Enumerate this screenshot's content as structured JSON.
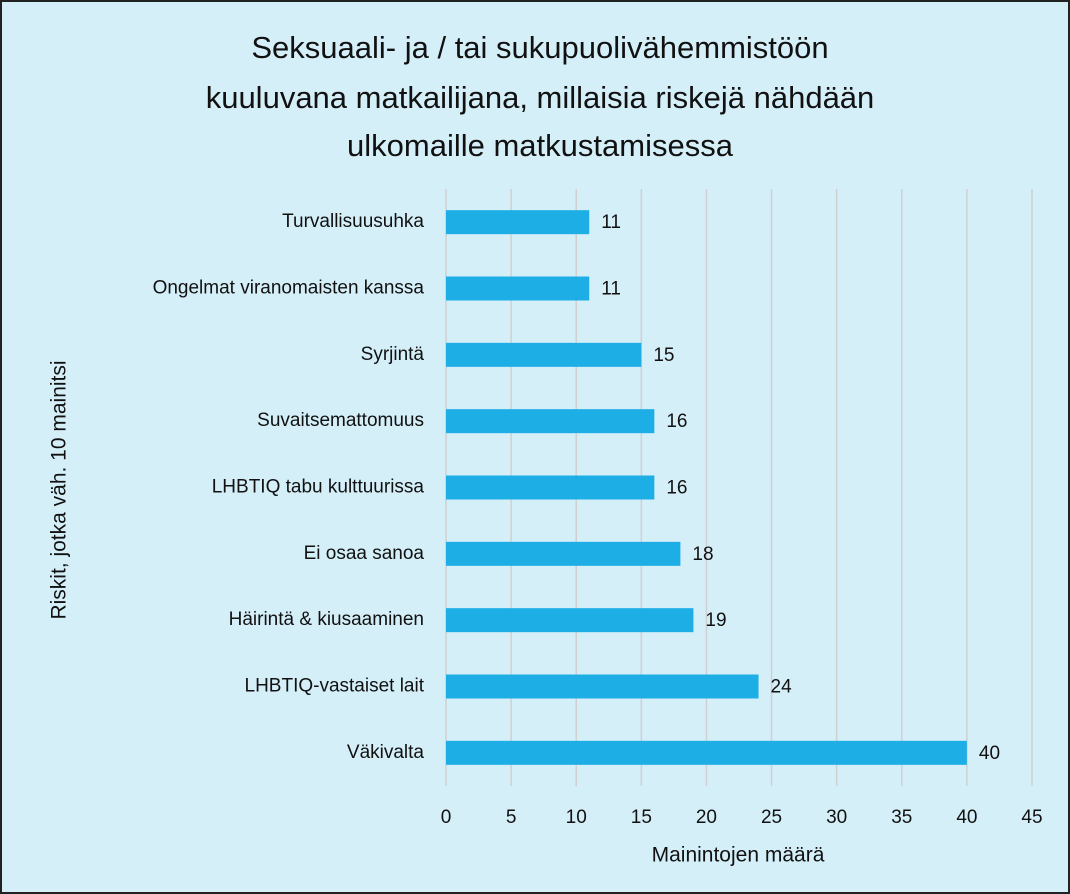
{
  "chart_data": {
    "type": "bar",
    "orientation": "horizontal",
    "title": [
      "Seksuaali- ja / tai sukupuolivähemmistöön",
      "kuuluvana matkailijana, millaisia riskejä nähdään",
      "ulkomaille matkustamisessa"
    ],
    "x_label": "Mainintojen määrä",
    "y_label": "Riskit, jotka väh. 10 mainitsi",
    "categories": [
      "Turvallisuusuhka",
      "Ongelmat viranomaisten kanssa",
      "Syrjintä",
      "Suvaitsemattomuus",
      "LHBTIQ tabu kulttuurissa",
      "Ei osaa sanoa",
      "Häirintä & kiusaaminen",
      "LHBTIQ-vastaiset lait",
      "Väkivalta"
    ],
    "values": [
      11,
      11,
      15,
      16,
      16,
      18,
      19,
      24,
      40
    ],
    "color": "#1eaee6",
    "xlim": [
      0,
      45
    ],
    "xticks": [
      0,
      5,
      10,
      15,
      20,
      25,
      30,
      35,
      40,
      45
    ],
    "grid": true
  }
}
